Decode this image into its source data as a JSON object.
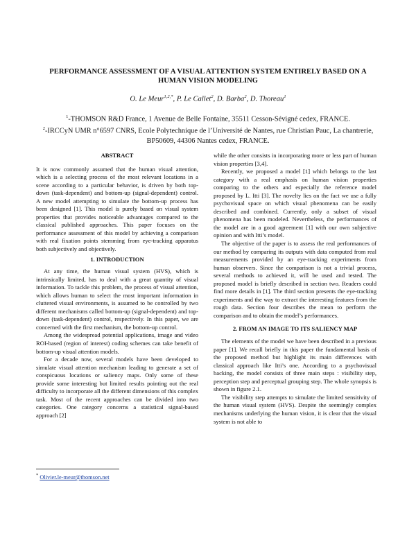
{
  "header": {
    "title": "PERFORMANCE ASSESSMENT OF A VISUAL ATTENTION SYSTEM ENTIRELY BASED ON A HUMAN VISION MODELING",
    "authors": [
      {
        "name": "O. Le Meur",
        "sup": "1,2,*"
      },
      {
        "name": ", P. Le Callet",
        "sup": "2"
      },
      {
        "name": ", D. Barba",
        "sup": "2"
      },
      {
        "name": ", D. Thoreau",
        "sup": "1"
      }
    ],
    "affiliations": [
      {
        "sup": "1",
        "text": "-THOMSON R&D France, 1 Avenue de Belle Fontaine, 35511 Cesson-Sévigné cedex, FRANCE."
      },
      {
        "sup": "2",
        "text": "-IRCCyN UMR n°6597 CNRS, Ecole Polytechnique de l’Université de Nantes, rue Christian Pauc, La chantrerie, BP50609, 44306 Nantes cedex, FRANCE."
      }
    ]
  },
  "columns": [
    [
      {
        "heading": "ABSTRACT"
      },
      {
        "text": "It is now commonly assumed that the human visual attention, which is a selecting process of the most relevant locations in a scene according to a particular behavior, is driven by both top-down (task-dependent) and bottom-up (signal-dependent) control. A new model attempting to simulate the bottom-up process has been designed [1]. This model is purely based on visual system properties that provides noticeable advantages compared to the classical published approaches. This paper focuses on the performance assessment of this model by achieving a comparison with real fixation points stemming from eye-tracking apparatus both subjectively and objectively."
      },
      {
        "heading": "1. INTRODUCTION"
      },
      {
        "text": "At any time, the human visual system (HVS), which is intrinsically limited, has to deal with a great quantity of visual information. To tackle this problem, the process of visual attention, which allows human to select the most important information in cluttered visual environments, is assumed to be controlled by two different mechanisms called bottom-up (signal-dependent) and top-down (task-dependent) control, respectively. In this paper, we are concerned with the first mechanism, the bottom-up control."
      },
      {
        "text": "Among the widespread potential applications, image and video ROI-based (region of interest) coding schemes can take benefit of bottom-up visual attention models."
      },
      {
        "text": "For a decade now, several models have been developed to simulate visual attention mechanism leading to generate a set of conspicuous locations or saliency maps. Only some of these provide some interesting but limited results pointing out the real difficulty to incorporate all the different dimensions of this complex task. Most of the recent approaches can be divided into two categories. One category concerns a statistical signal-based approach [2]"
      }
    ],
    [
      {
        "text": "while the other consists in incorporating more or less part of human vision properties [3,4]."
      },
      {
        "text": "Recently, we proposed a model [1] which belongs to the last category with a real emphasis on human vision properties comparing to the others and especially the reference model proposed by L. Itti [3]. The novelty lies on the fact we use a fully psychovisual space on which visual phenomena can be easily described and combined. Currently, only a subset of visual phenomena has been modeled. Nevertheless, the performances of the model are in a good agreement [1] with our own subjective opinion and with Itti’s model."
      },
      {
        "text": "The objective of the paper is to assess the real performances of our method by comparing its outputs with data computed from real measurements provided by an eye-tracking experiments from human observers. Since the comparison is not a trivial process, several methods to achieved it, will be used and tested. The proposed model is briefly described in section two. Readers could find more details in [1]. The third section presents the eye-tracking experiments and the way to extract the interesting features from the rough data. Section four describes the mean to perform the comparison and to obtain the model’s performances."
      },
      {
        "heading": "2. FROM AN IMAGE TO ITS SALIENCY MAP"
      },
      {
        "text": "The elements of the model we have been described in a previous paper [1]. We recall briefly in this paper the fundamental basis of the proposed method but highlight its main differences with classical approach like Itti’s one. According to a psychovisual backing, the model consists of three main steps : visibility step, perception step and perceptual grouping step. The whole synopsis is shown in figure 2.1."
      },
      {
        "text": "The visibility step attempts to simulate the limited sensitivity of the human visual system (HVS). Despite the seemingly complex mechanisms underlying the human vision, it is clear that the visual system is not able to"
      }
    ]
  ],
  "footnote": {
    "mark": "*",
    "text": "Olivier.le-meur@thomson.net"
  }
}
